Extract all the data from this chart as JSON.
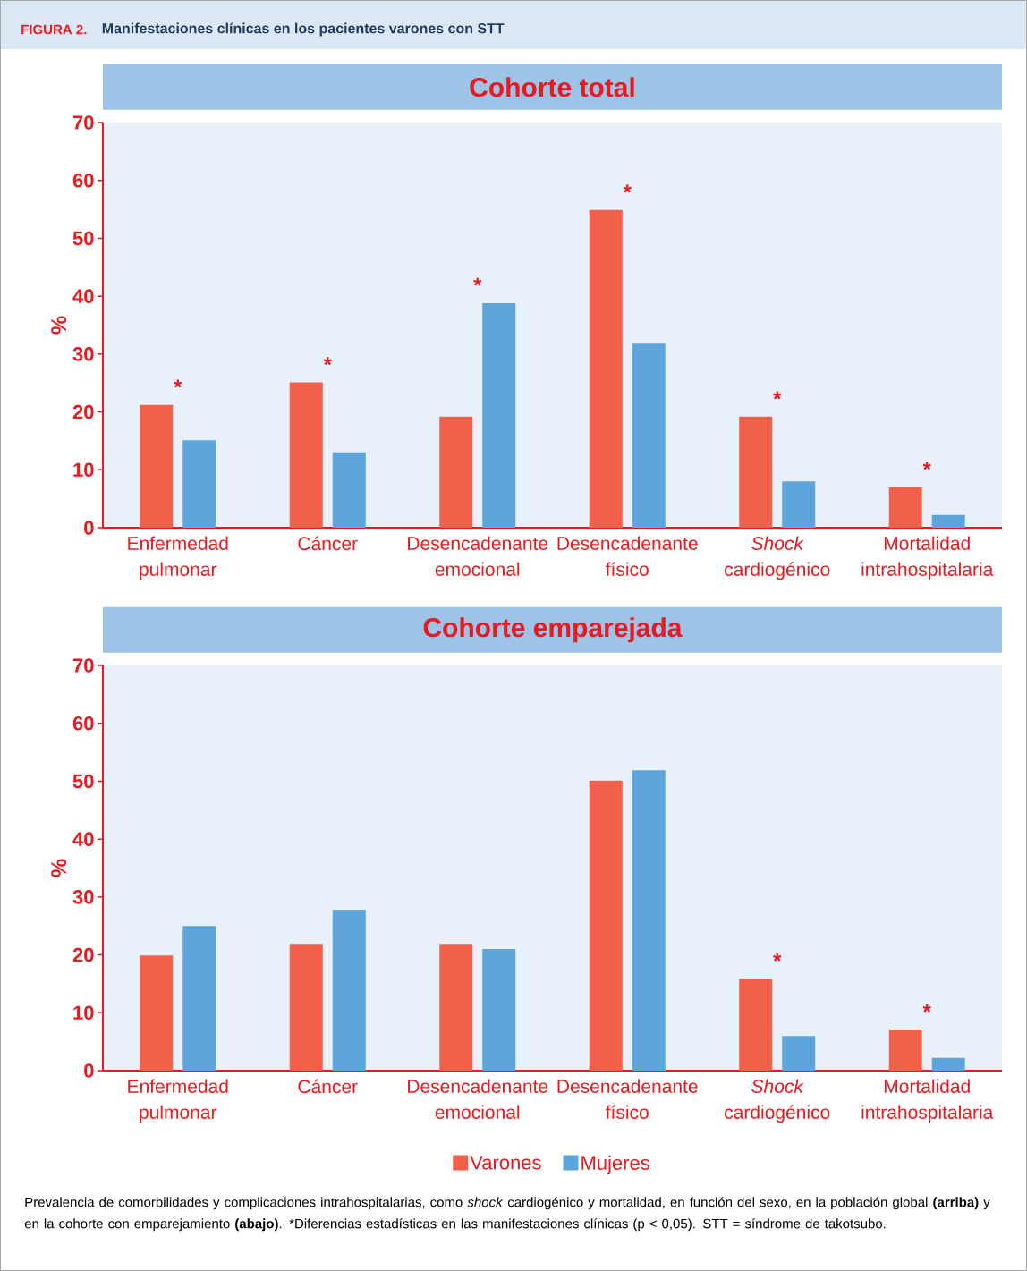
{
  "chart_data": [
    {
      "type": "bar",
      "title": "Cohorte total",
      "ylabel": "%",
      "categories": [
        "Enfermedad pulmonar",
        "Cáncer",
        "Desencadenante emocional",
        "Desencadenante físico",
        "*Shock* cardiogénico",
        "Mortalidad intrahospitalaria"
      ],
      "series": [
        {
          "color": "#f0604a",
          "values": [
            21.2,
            25.1,
            19.2,
            54.9,
            19.2,
            7.0
          ]
        },
        {
          "color": "#5ea5dc",
          "values": [
            15.1,
            13.0,
            38.8,
            31.8,
            8.0,
            2.2
          ]
        }
      ],
      "ylim": [
        0,
        70
      ],
      "yticks": [
        0,
        10,
        20,
        30,
        40,
        50,
        60,
        70
      ],
      "grid": false,
      "legend": false,
      "annotations": [
        "FIGURA 2.",
        "Manifestaciones clínicas en los pacientes varones con STT",
        "*",
        "*",
        "*",
        "*",
        "*",
        "*"
      ]
    },
    {
      "type": "bar",
      "title": "Cohorte emparejada",
      "ylabel": "%",
      "categories": [
        "Enfermedad pulmonar",
        "Cáncer",
        "Desencadenante emocional",
        "Desencadenante físico",
        "*Shock* cardiogénico",
        "Mortalidad intrahospitalaria"
      ],
      "series": [
        {
          "name": "Varones",
          "color": "#f0604a",
          "values": [
            19.9,
            21.9,
            21.9,
            50.1,
            15.9,
            7.1
          ]
        },
        {
          "name": "Mujeres",
          "color": "#5ea5dc",
          "values": [
            25.0,
            27.8,
            21.0,
            51.9,
            6.0,
            2.2
          ]
        }
      ],
      "ylim": [
        0,
        70
      ],
      "yticks": [
        0,
        10,
        20,
        30,
        40,
        50,
        60,
        70
      ],
      "grid": false,
      "legend": "bottom",
      "annotations": [
        "*",
        "*",
        "Prevalencia de comorbilidades y complicaciones intrahospitalarias, como *shock* cardiogénico y mortalidad, en función del sexo, en la población global **(arriba)** y en la cohorte con emparejamiento **(abajo)**. *Diferencias estadísticas en las manifestaciones clínicas (p < 0,05). STT = síndrome de takotsubo."
      ]
    }
  ]
}
